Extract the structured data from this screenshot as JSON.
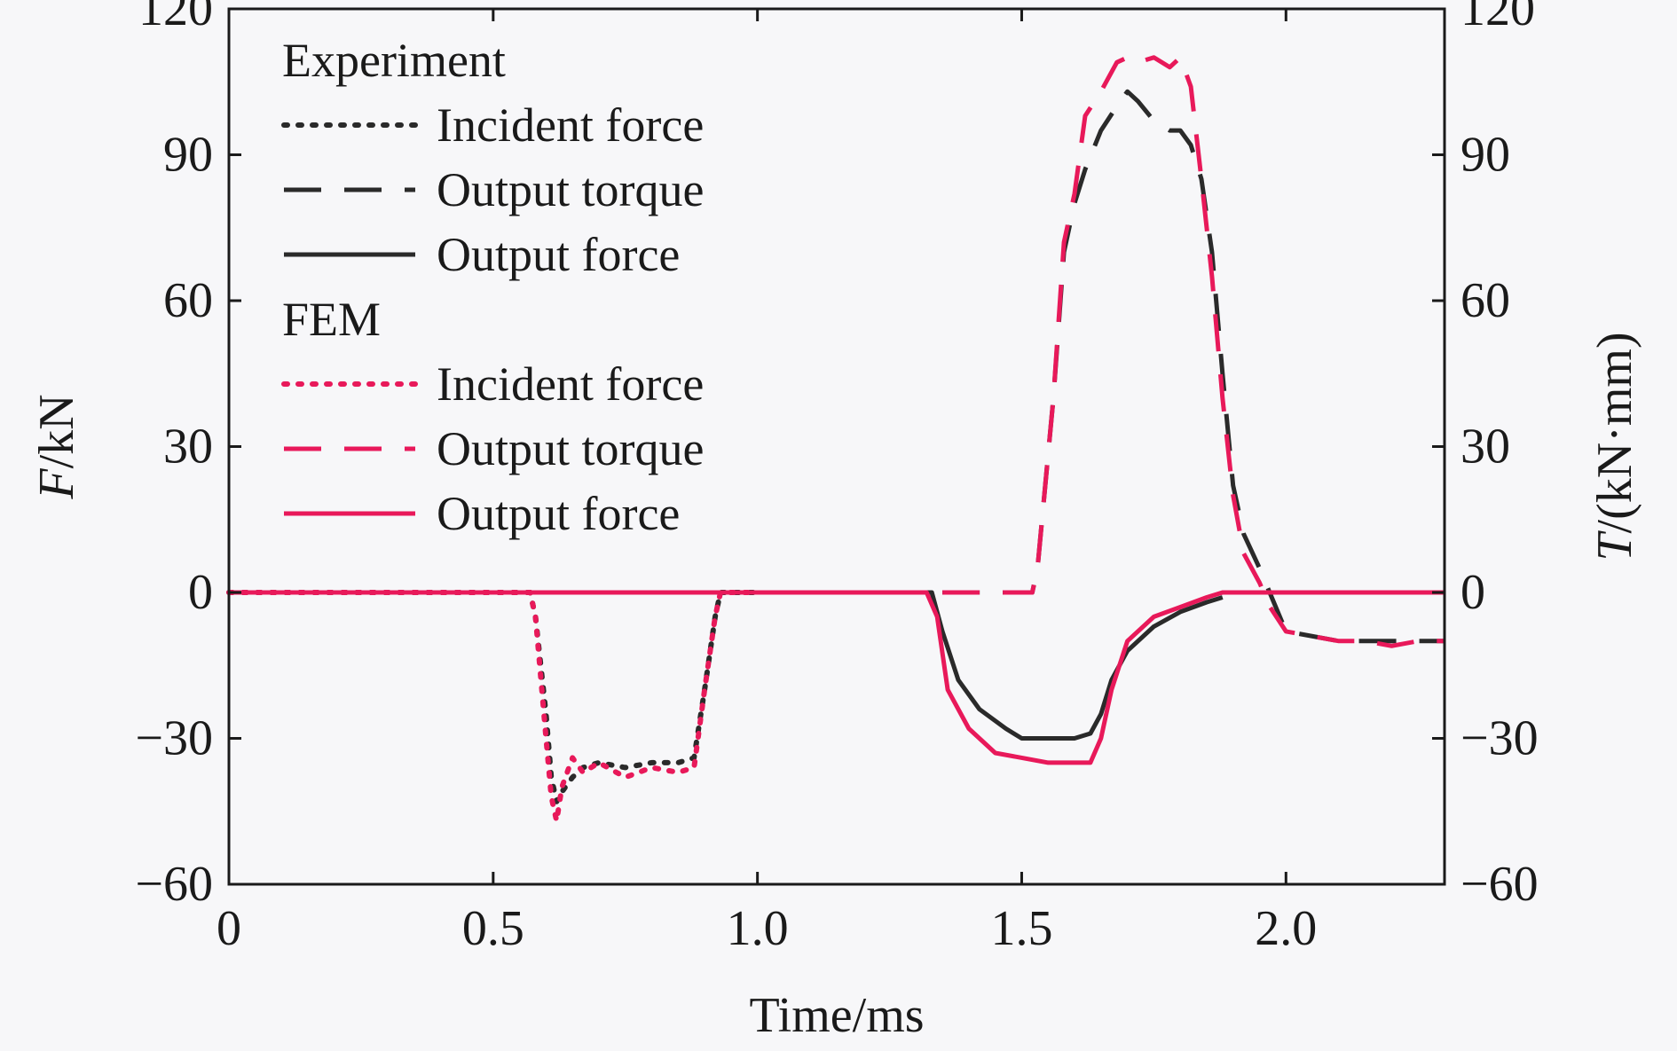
{
  "chart_data": {
    "type": "line",
    "xlabel": "Time/ms",
    "ylabel": {
      "italic": "F",
      "rest": "/kN"
    },
    "y2label": {
      "italic": "T",
      "rest": "/(kN·mm)"
    },
    "xlim": [
      0,
      2.3
    ],
    "ylim": [
      -60,
      120
    ],
    "y2lim": [
      -60,
      120
    ],
    "x_ticks": [
      0,
      0.5,
      1.0,
      1.5,
      2.0
    ],
    "x_tick_labels": [
      "0",
      "0.5",
      "1.0",
      "1.5",
      "2.0"
    ],
    "y_ticks": [
      120,
      90,
      60,
      30,
      0,
      -30,
      -60
    ],
    "y_tick_labels": [
      "120",
      "90",
      "60",
      "30",
      "0",
      "−30",
      "−60"
    ],
    "y2_tick_labels": [
      "120",
      "90",
      "60",
      "30",
      "0",
      "−30",
      "−60"
    ],
    "grid": false,
    "legend_position": "top-left",
    "legend_groups": [
      {
        "title": "Experiment",
        "entries": [
          "Incident force",
          "Output torque",
          "Output force"
        ]
      },
      {
        "title": "FEM",
        "entries": [
          "Incident force",
          "Output torque",
          "Output force"
        ]
      }
    ],
    "colors": {
      "experiment": "#2a2a2a",
      "fem": "#e8195a"
    },
    "series": [
      {
        "group": "Experiment",
        "name": "Incident force",
        "color": "#2a2a2a",
        "style": "dotted",
        "x": [
          0,
          0.57,
          0.58,
          0.6,
          0.61,
          0.62,
          0.63,
          0.65,
          0.67,
          0.7,
          0.75,
          0.8,
          0.85,
          0.88,
          0.9,
          0.92,
          0.93,
          1.0
        ],
        "y": [
          0,
          0,
          -5,
          -25,
          -38,
          -43,
          -41,
          -38,
          -36,
          -35,
          -36,
          -35,
          -35,
          -34,
          -20,
          -5,
          0,
          0
        ]
      },
      {
        "group": "Experiment",
        "name": "Output torque",
        "color": "#2a2a2a",
        "style": "dashed",
        "x": [
          1.35,
          1.52,
          1.53,
          1.56,
          1.58,
          1.6,
          1.62,
          1.65,
          1.68,
          1.7,
          1.72,
          1.75,
          1.78,
          1.8,
          1.82,
          1.84,
          1.86,
          1.88,
          1.9,
          1.92,
          1.95,
          2.0,
          2.1,
          2.2,
          2.3
        ],
        "y": [
          0,
          0,
          5,
          40,
          70,
          80,
          87,
          95,
          100,
          103,
          101,
          97,
          95,
          95,
          92,
          85,
          70,
          45,
          22,
          12,
          5,
          -8,
          -10,
          -10,
          -10
        ]
      },
      {
        "group": "Experiment",
        "name": "Output force",
        "color": "#2a2a2a",
        "style": "solid",
        "x": [
          0,
          1.33,
          1.35,
          1.38,
          1.42,
          1.47,
          1.5,
          1.55,
          1.6,
          1.63,
          1.65,
          1.67,
          1.7,
          1.75,
          1.8,
          1.85,
          1.88
        ],
        "y": [
          0,
          0,
          -8,
          -18,
          -24,
          -28,
          -30,
          -30,
          -30,
          -29,
          -25,
          -18,
          -12,
          -7,
          -4,
          -2,
          -1
        ]
      },
      {
        "group": "FEM",
        "name": "Incident force",
        "color": "#e8195a",
        "style": "dotted",
        "x": [
          0,
          0.57,
          0.58,
          0.6,
          0.61,
          0.62,
          0.63,
          0.65,
          0.67,
          0.7,
          0.75,
          0.8,
          0.85,
          0.88,
          0.9,
          0.92,
          0.93,
          1.0
        ],
        "y": [
          0,
          0,
          -5,
          -30,
          -42,
          -47,
          -40,
          -34,
          -37,
          -35,
          -38,
          -36,
          -37,
          -36,
          -20,
          -5,
          0,
          0
        ]
      },
      {
        "group": "FEM",
        "name": "Output torque",
        "color": "#e8195a",
        "style": "dashed",
        "x": [
          1.35,
          1.52,
          1.53,
          1.56,
          1.58,
          1.6,
          1.62,
          1.65,
          1.68,
          1.7,
          1.72,
          1.75,
          1.78,
          1.8,
          1.82,
          1.84,
          1.86,
          1.88,
          1.9,
          1.92,
          1.95,
          1.97,
          2.0,
          2.05,
          2.1,
          2.15,
          2.2,
          2.25,
          2.3
        ],
        "y": [
          0,
          0,
          5,
          40,
          72,
          82,
          98,
          103,
          109,
          110,
          109,
          110,
          108,
          110,
          104,
          85,
          65,
          40,
          20,
          8,
          2,
          -3,
          -8,
          -9,
          -10,
          -10,
          -11,
          -10,
          -10
        ]
      },
      {
        "group": "FEM",
        "name": "Output force",
        "color": "#e8195a",
        "style": "solid",
        "x": [
          0,
          1.32,
          1.34,
          1.36,
          1.4,
          1.45,
          1.5,
          1.55,
          1.6,
          1.63,
          1.65,
          1.67,
          1.7,
          1.75,
          1.8,
          1.85,
          1.88,
          1.9,
          2.3
        ],
        "y": [
          0,
          0,
          -5,
          -20,
          -28,
          -33,
          -34,
          -35,
          -35,
          -35,
          -30,
          -20,
          -10,
          -5,
          -3,
          -1,
          0,
          0,
          0
        ]
      }
    ]
  }
}
